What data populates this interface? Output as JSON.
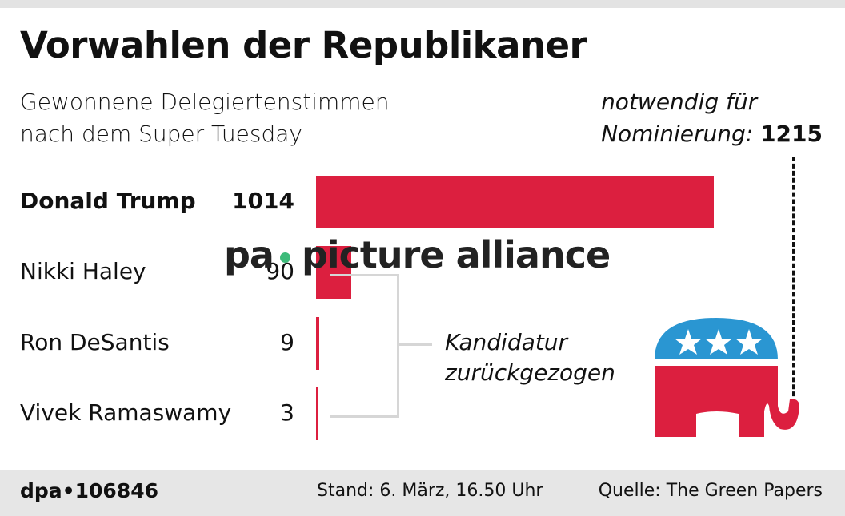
{
  "title": "Vorwahlen der Republikaner",
  "subtitle_line1": "Gewonnene Delegiertenstimmen",
  "subtitle_line2": "nach dem Super Tuesday",
  "threshold_line1": "notwendig für",
  "threshold_line2": "Nominierung:",
  "threshold_value": "1215",
  "annotation_line1": "Kandidatur",
  "annotation_line2": "zurückgezogen",
  "watermark": "pa picture alliance",
  "footer": {
    "id": "dpa•106846",
    "stand": "Stand: 6. März, 16.50 Uhr",
    "source": "Quelle: The Green Papers"
  },
  "colors": {
    "bar": "#dc1f3f",
    "elephant_blue": "#2a96d2",
    "elephant_red": "#dc1f3f"
  },
  "chart_data": {
    "type": "bar",
    "orientation": "horizontal",
    "categories": [
      "Donald Trump",
      "Nikki Haley",
      "Ron DeSantis",
      "Vivek Ramaswamy"
    ],
    "values": [
      1014,
      90,
      9,
      3
    ],
    "value_labels": [
      "1014",
      "90",
      "9",
      "3"
    ],
    "threshold": 1215,
    "xlim": [
      0,
      1215
    ]
  }
}
